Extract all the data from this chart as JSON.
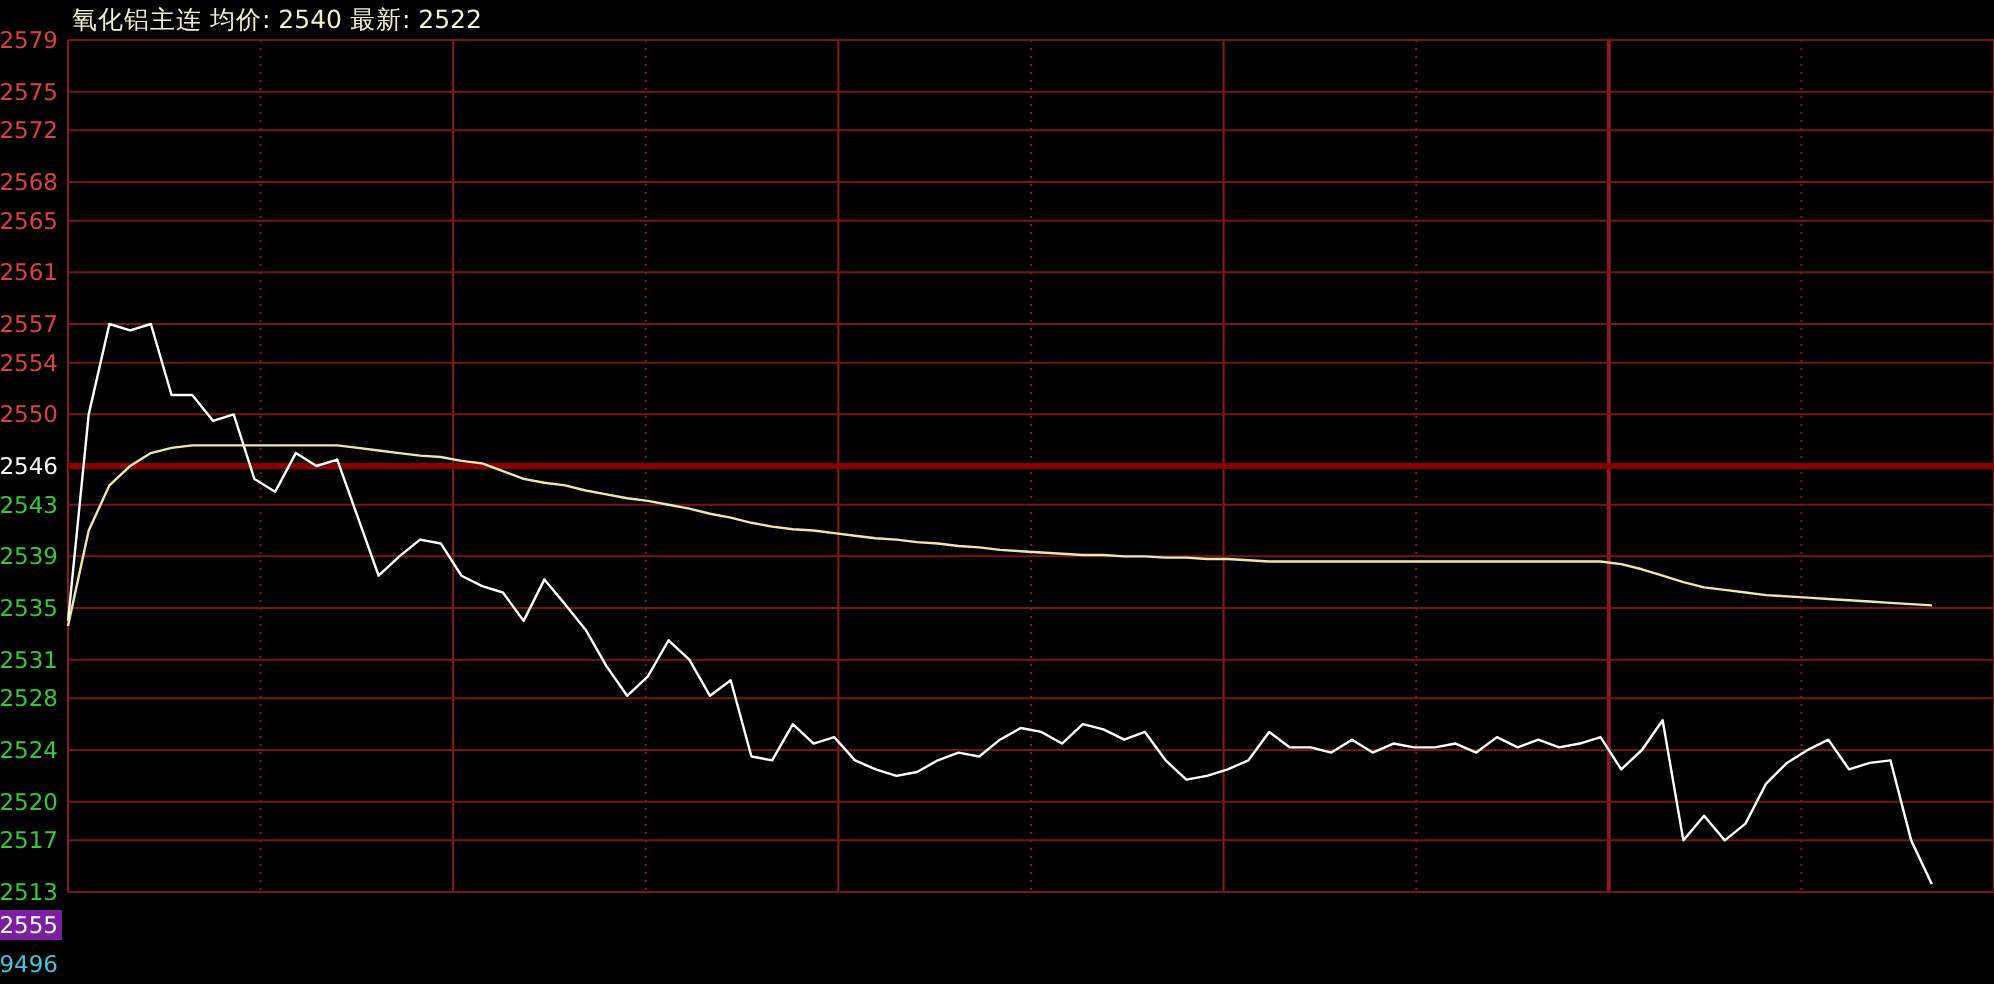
{
  "chart_data": {
    "type": "line",
    "title": "氧化铝主连 均价: 2540 最新: 2522",
    "categories": [
      null,
      null,
      null,
      null,
      null,
      null,
      null,
      null,
      null,
      null,
      null,
      null,
      null,
      null,
      null,
      null,
      null,
      null,
      null,
      null,
      null,
      null,
      null,
      null,
      null,
      null,
      null,
      null,
      null,
      null,
      null,
      null,
      null,
      null,
      null,
      null,
      null,
      null,
      null,
      null,
      null,
      null,
      null,
      null,
      null,
      null,
      null,
      null,
      null,
      null,
      null,
      null,
      null,
      null,
      null,
      null,
      null,
      null,
      null,
      null,
      null,
      null,
      null,
      null,
      null,
      null,
      null,
      null,
      null,
      null,
      null,
      null,
      null,
      null,
      null,
      null,
      null,
      null,
      null,
      null,
      null,
      null,
      null,
      null,
      null,
      null,
      null,
      null,
      null,
      null,
      null,
      null,
      null,
      null
    ],
    "series": [
      {
        "color": "#ffffff",
        "values": [
          2534,
          2550,
          2557,
          2556.5,
          2557,
          2551.5,
          2551.5,
          2549.5,
          2550,
          2545,
          2544,
          2547,
          2546,
          2546.5,
          2542,
          2537.5,
          2539,
          2540.3,
          2540,
          2537.5,
          2536.7,
          2536.2,
          2534,
          2537.2,
          2535.3,
          2533.3,
          2530.5,
          2528.2,
          2529.7,
          2532.5,
          2531,
          2528.2,
          2529.4,
          2523.5,
          2523.2,
          2526,
          2524.5,
          2525,
          2523.2,
          2522.5,
          2522,
          2522.3,
          2523.2,
          2523.8,
          2523.5,
          2524.8,
          2525.7,
          2525.4,
          2524.5,
          2526,
          2525.6,
          2524.8,
          2525.4,
          2523.2,
          2521.7,
          2522,
          2522.5,
          2523.2,
          2525.4,
          2524.2,
          2524.2,
          2523.8,
          2524.8,
          2523.8,
          2524.5,
          2524.2,
          2524.2,
          2524.5,
          2523.8,
          2525,
          2524.2,
          2524.8,
          2524.2,
          2524.5,
          2525,
          2522.5,
          2524,
          2526.3,
          2517,
          2518.9,
          2517,
          2518.3,
          2521.4,
          2523,
          2524,
          2524.8,
          2522.5,
          2523,
          2523.2,
          2517,
          2513.6,
          null,
          null,
          null
        ]
      },
      {
        "color": "#eee8a8",
        "values": [
          2533.6,
          2541,
          2544.5,
          2546,
          2547,
          2547.4,
          2547.6,
          2547.6,
          2547.6,
          2547.6,
          2547.6,
          2547.6,
          2547.6,
          2547.6,
          2547.4,
          2547.2,
          2547,
          2546.8,
          2546.7,
          2546.4,
          2546.2,
          2545.6,
          2545,
          2544.7,
          2544.5,
          2544.1,
          2543.8,
          2543.5,
          2543.3,
          2543,
          2542.7,
          2542.3,
          2542,
          2541.6,
          2541.3,
          2541.1,
          2541,
          2540.8,
          2540.6,
          2540.4,
          2540.3,
          2540.1,
          2540,
          2539.8,
          2539.7,
          2539.5,
          2539.4,
          2539.3,
          2539.2,
          2539.1,
          2539.1,
          2539,
          2539,
          2538.9,
          2538.9,
          2538.8,
          2538.8,
          2538.7,
          2538.6,
          2538.6,
          2538.6,
          2538.6,
          2538.6,
          2538.6,
          2538.6,
          2538.6,
          2538.6,
          2538.6,
          2538.6,
          2538.6,
          2538.6,
          2538.6,
          2538.6,
          2538.6,
          2538.6,
          2538.4,
          2538,
          2537.5,
          2537,
          2536.6,
          2536.4,
          2536.2,
          2536,
          2535.9,
          2535.8,
          2535.7,
          2535.6,
          2535.5,
          2535.4,
          2535.3,
          2535.2,
          null,
          null,
          null
        ]
      }
    ],
    "ylim": [
      2513,
      2579
    ],
    "yticks": [
      2513,
      2517,
      2520,
      2524,
      2528,
      2531,
      2535,
      2539,
      2543,
      2546,
      2550,
      2554,
      2557,
      2561,
      2565,
      2568,
      2572,
      2575,
      2579
    ],
    "grid": true,
    "ref_lines": [
      {
        "axis": "y",
        "value": 2546,
        "color": "#8b0000"
      }
    ],
    "annotations": [
      "2555",
      "9496"
    ]
  }
}
